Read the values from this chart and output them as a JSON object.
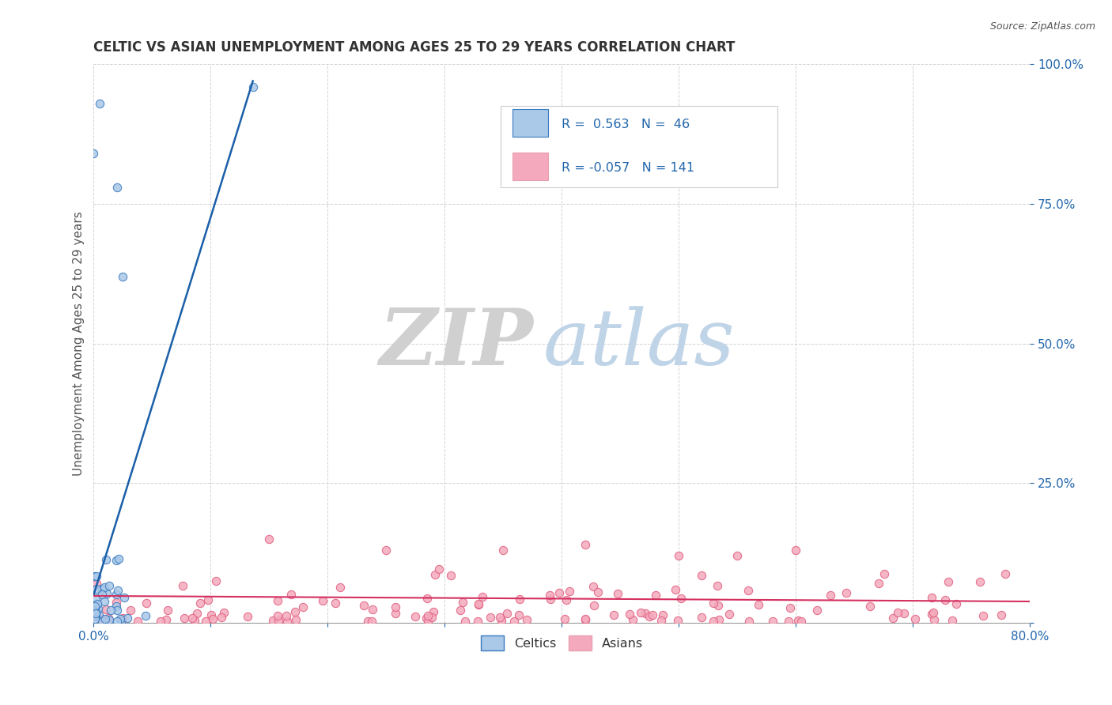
{
  "title": "CELTIC VS ASIAN UNEMPLOYMENT AMONG AGES 25 TO 29 YEARS CORRELATION CHART",
  "source_text": "Source: ZipAtlas.com",
  "ylabel": "Unemployment Among Ages 25 to 29 years",
  "xlim": [
    0.0,
    0.8
  ],
  "ylim": [
    0.0,
    1.0
  ],
  "xticks": [
    0.0,
    0.1,
    0.2,
    0.3,
    0.4,
    0.5,
    0.6,
    0.7,
    0.8
  ],
  "xticklabels": [
    "0.0%",
    "",
    "",
    "",
    "",
    "",
    "",
    "",
    "80.0%"
  ],
  "yticks": [
    0.0,
    0.25,
    0.5,
    0.75,
    1.0
  ],
  "yticklabels": [
    "",
    "25.0%",
    "50.0%",
    "75.0%",
    "100.0%"
  ],
  "celtic_R": 0.563,
  "celtic_N": 46,
  "asian_R": -0.057,
  "asian_N": 141,
  "celtic_color": "#aac8e8",
  "celtic_edge": "#3a7abf",
  "asian_color": "#f4aabc",
  "asian_edge": "#e06080",
  "celtic_trend_color": "#1a5fa8",
  "asian_trend_color": "#d43060",
  "background_color": "#ffffff",
  "grid_color": "#c8c8c8",
  "watermark_ZIP_color": "#d0d0d0",
  "watermark_atlas_color": "#c0d4e8",
  "legend_label_blue": "Celtics",
  "legend_label_pink": "Asians",
  "legend_R_color": "#2166ac",
  "title_color": "#333333",
  "axis_label_color": "#555555",
  "tick_color": "#2166ac"
}
